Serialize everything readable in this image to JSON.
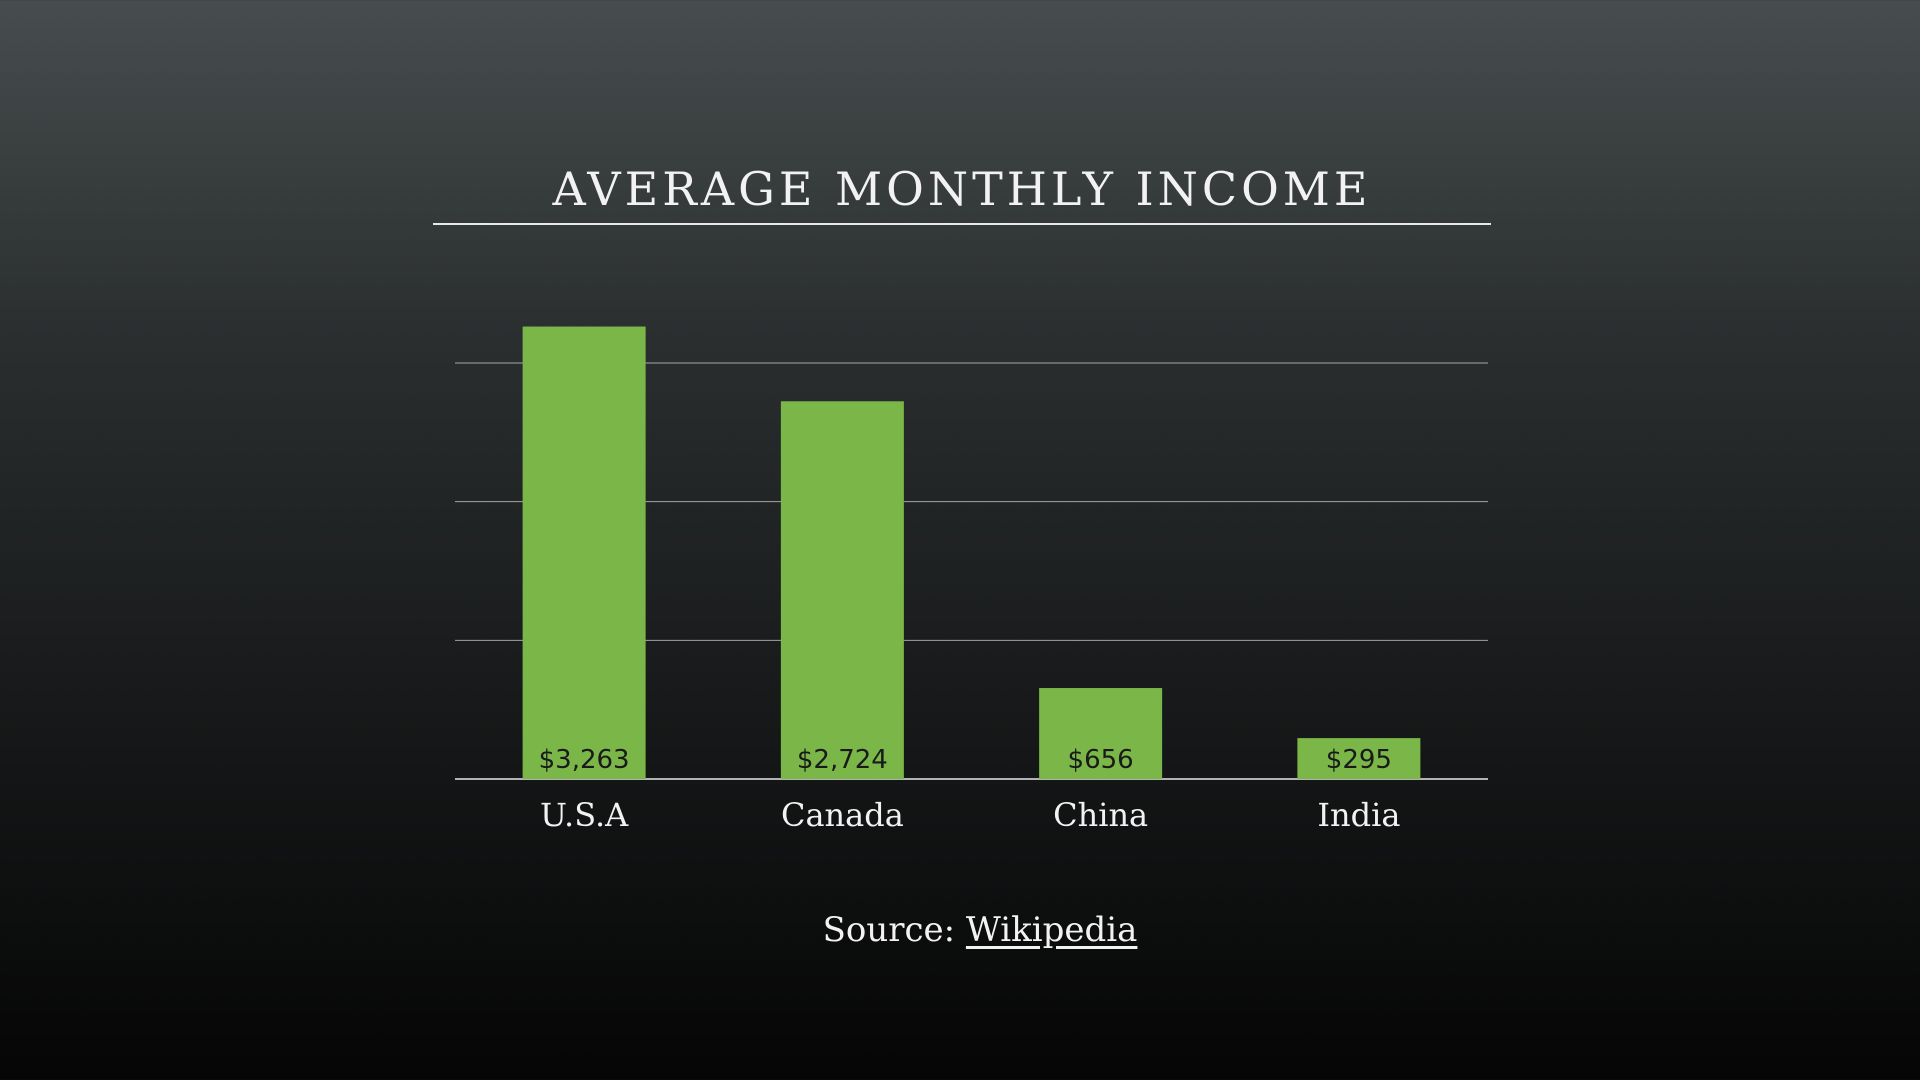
{
  "slide": {
    "source_label": "Source:",
    "source_link": "Wikipedia"
  },
  "chart_data": {
    "type": "bar",
    "title": "AVERAGE MONTHLY INCOME",
    "categories": [
      "U.S.A",
      "Canada",
      "China",
      "India"
    ],
    "values": [
      3263,
      2724,
      656,
      295
    ],
    "data_labels": [
      "$3,263",
      "$2,724",
      "$656",
      "$295"
    ],
    "xlabel": "",
    "ylabel": "",
    "ylim": [
      0,
      3000
    ],
    "grid": true,
    "legend": "none",
    "colors": {
      "bar": "#7ab648",
      "label": "#1a1a1a",
      "grid": "#cfcfcf"
    }
  }
}
